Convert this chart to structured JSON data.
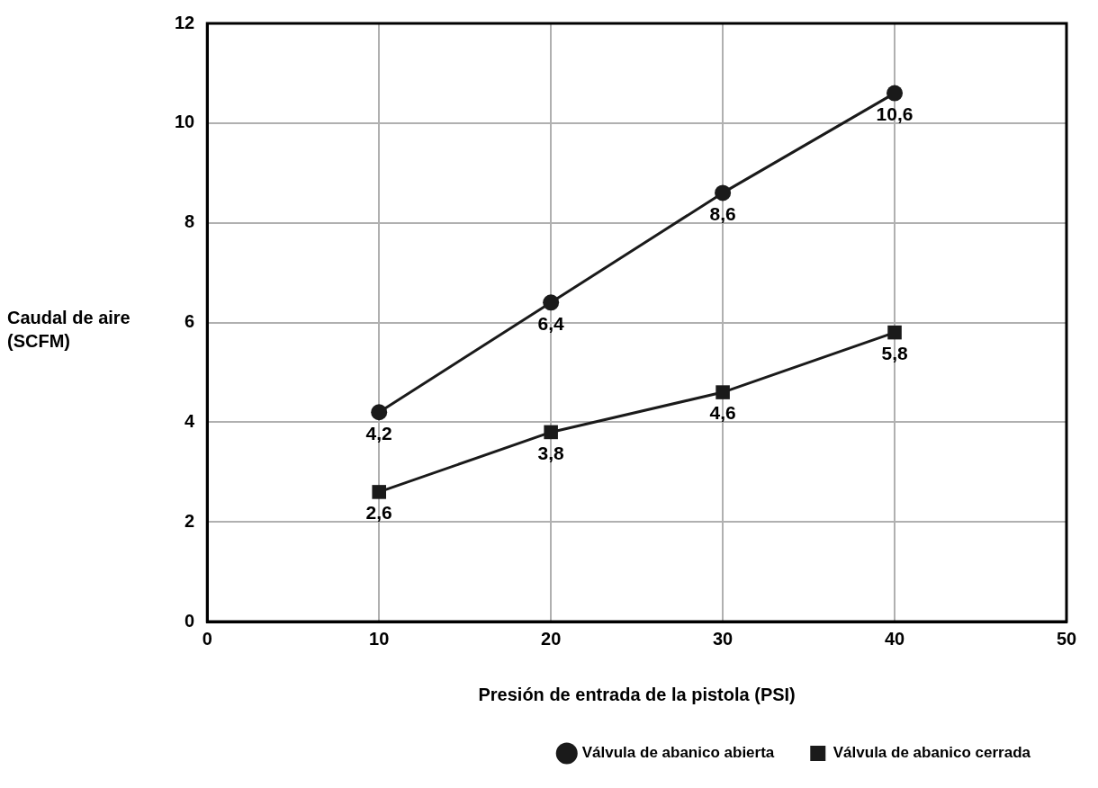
{
  "chart_data": {
    "type": "line",
    "xlabel": "Presión de entrada de la pistola (PSI)",
    "ylabel": "Caudal de aire (SCFM)",
    "x": [
      10,
      20,
      30,
      40
    ],
    "xlim": [
      0,
      50
    ],
    "xticks": [
      0,
      10,
      20,
      30,
      40,
      50
    ],
    "ylim": [
      0,
      12
    ],
    "yticks": [
      0,
      2,
      4,
      6,
      8,
      10,
      12
    ],
    "grid": true,
    "legend": "bottom right",
    "line_style": "solid",
    "series": [
      {
        "name": "Válvula de abanico abierta",
        "color": "#1a1a1a",
        "marker": "circle",
        "values": [
          4.2,
          6.4,
          8.6,
          10.6
        ],
        "value_labels": [
          "4,2",
          "6,4",
          "8,6",
          "10,6"
        ]
      },
      {
        "name": "Válvula de abanico cerrada",
        "color": "#1a1a1a",
        "marker": "square",
        "values": [
          2.6,
          3.8,
          4.6,
          5.8
        ],
        "value_labels": [
          "2,6",
          "3,8",
          "4,6",
          "5,8"
        ]
      }
    ]
  }
}
